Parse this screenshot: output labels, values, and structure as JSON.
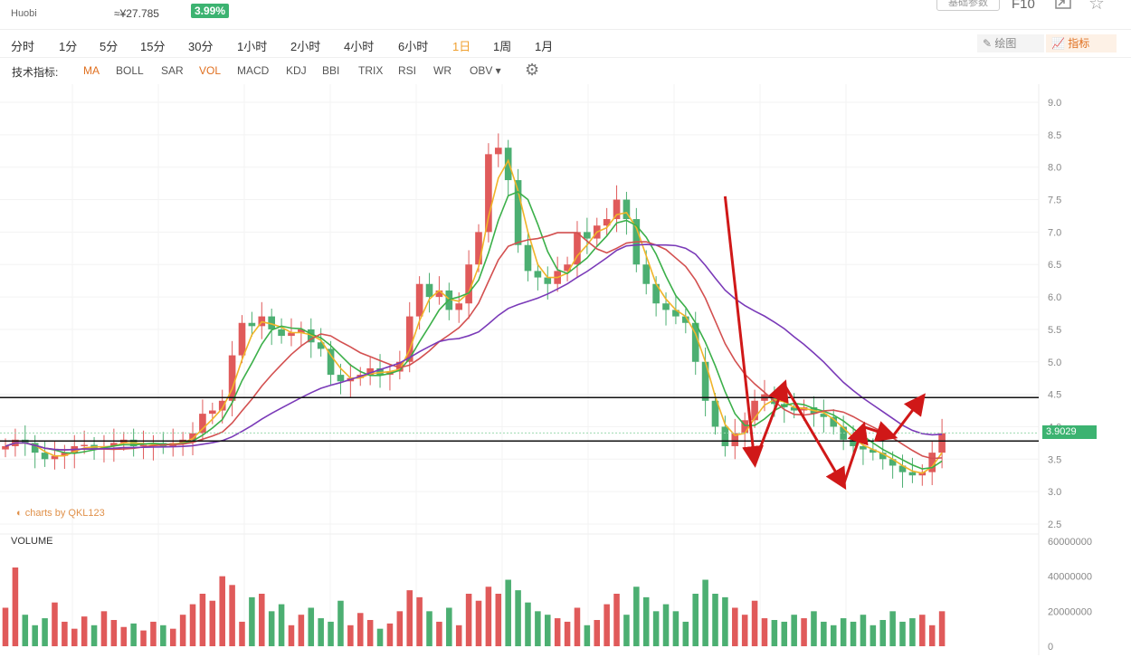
{
  "header": {
    "exchange": "Huobi",
    "cny_price": "≈¥27.785",
    "change_pct": "3.99%",
    "params_button": "基础参数",
    "f10_label": "F10"
  },
  "timeframes": [
    "分时",
    "1分",
    "5分",
    "15分",
    "30分",
    "1小时",
    "2小时",
    "4小时",
    "6小时",
    "1日",
    "1周",
    "1月"
  ],
  "active_timeframe": "1日",
  "tools": {
    "draw_label": "绘图",
    "indicator_label": "指标"
  },
  "indicator_bar": {
    "title": "技术指标:",
    "items": [
      "MA",
      "BOLL",
      "SAR",
      "VOL",
      "MACD",
      "KDJ",
      "BBI",
      "TRIX",
      "RSI",
      "WR",
      "OBV ▾"
    ],
    "active": [
      "MA",
      "VOL"
    ]
  },
  "watermark": "charts by QKL123",
  "volume_label": "VOLUME",
  "current_price_label": "3.9029",
  "colors": {
    "up": "#e05a5a",
    "down": "#4caf72",
    "ma_fast": "#f0b429",
    "ma_mid": "#3cb04a",
    "ma_slow": "#d35050",
    "ma_long": "#7a3ab8",
    "annotation": "#d01818",
    "badge": "#3cb371"
  },
  "chart_data": {
    "type": "candlestick",
    "price_axis": {
      "ticks": [
        "9.0",
        "8.5",
        "8.0",
        "7.5",
        "7.0",
        "6.5",
        "6.0",
        "5.5",
        "5.0",
        "4.5",
        "4.0",
        "3.5",
        "3.0",
        "2.5"
      ],
      "ylim": [
        2.5,
        9.0
      ]
    },
    "volume_axis": {
      "ticks": [
        "60000000",
        "40000000",
        "20000000",
        "0"
      ],
      "ylim": [
        0,
        60000000
      ]
    },
    "close_series": [
      3.7,
      3.8,
      3.75,
      3.6,
      3.5,
      3.55,
      3.6,
      3.7,
      3.72,
      3.65,
      3.7,
      3.75,
      3.8,
      3.7,
      3.72,
      3.75,
      3.7,
      3.75,
      3.8,
      3.9,
      4.2,
      4.25,
      4.4,
      5.1,
      5.6,
      5.55,
      5.7,
      5.5,
      5.4,
      5.45,
      5.5,
      5.3,
      5.2,
      4.8,
      4.7,
      4.75,
      4.8,
      4.9,
      4.8,
      4.85,
      5.0,
      5.7,
      6.2,
      6.0,
      6.1,
      5.8,
      5.9,
      6.5,
      7.0,
      8.2,
      8.3,
      7.8,
      6.8,
      6.4,
      6.3,
      6.2,
      6.4,
      6.5,
      7.0,
      6.9,
      7.1,
      7.2,
      7.5,
      7.2,
      6.5,
      6.2,
      5.9,
      5.8,
      5.7,
      5.6,
      5.0,
      4.4,
      4.0,
      3.7,
      3.9,
      4.1,
      4.4,
      4.5,
      4.35,
      4.3,
      4.25,
      4.3,
      4.2,
      4.15,
      4.0,
      3.8,
      3.7,
      3.65,
      3.6,
      3.5,
      3.4,
      3.3,
      3.25,
      3.3,
      3.6,
      3.9
    ],
    "volume_series": [
      22,
      45,
      18,
      12,
      16,
      25,
      14,
      10,
      17,
      12,
      20,
      15,
      11,
      13,
      9,
      14,
      12,
      10,
      18,
      24,
      30,
      26,
      40,
      35,
      14,
      28,
      30,
      20,
      24,
      12,
      18,
      22,
      16,
      14,
      26,
      12,
      19,
      15,
      10,
      13,
      20,
      32,
      28,
      20,
      14,
      22,
      12,
      30,
      26,
      34,
      30,
      38,
      32,
      25,
      20,
      18,
      16,
      14,
      22,
      12,
      15,
      24,
      30,
      18,
      34,
      28,
      20,
      24,
      20,
      14,
      30,
      38,
      30,
      28,
      22,
      18,
      26,
      16,
      15,
      14,
      18,
      16,
      20,
      14,
      12,
      16,
      14,
      18,
      12,
      15,
      20,
      14,
      16,
      18,
      12,
      20
    ],
    "ma_lines": [
      "MA fast",
      "MA mid",
      "MA slow",
      "MA long"
    ],
    "support_resistance_levels": [
      4.45,
      3.78
    ],
    "annotation_path": [
      [
        73,
        7.55
      ],
      [
        76,
        3.45
      ],
      [
        79,
        4.65
      ],
      [
        85,
        3.1
      ],
      [
        87,
        4.0
      ],
      [
        90,
        3.85
      ],
      [
        93,
        4.45
      ]
    ]
  }
}
